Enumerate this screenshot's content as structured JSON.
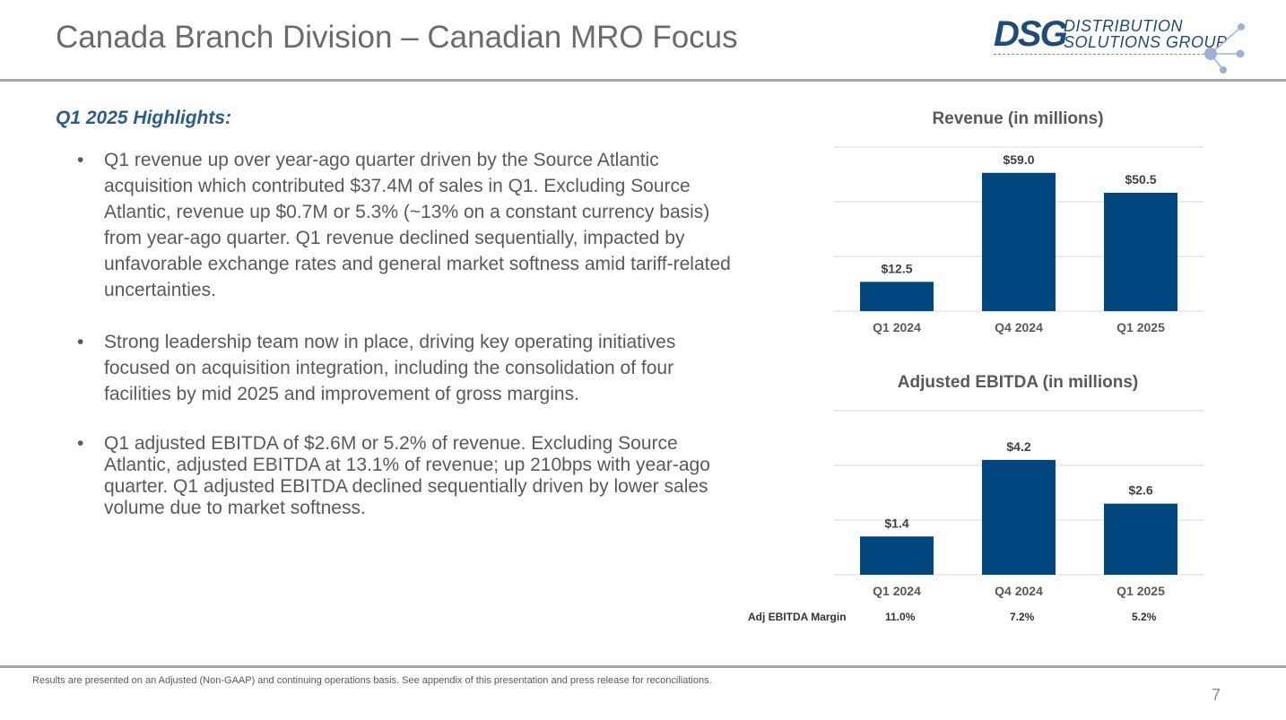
{
  "slide": {
    "title": "Canada Branch Division – Canadian MRO Focus",
    "page_number": "7",
    "footnote": "Results are presented on an Adjusted (Non-GAAP) and continuing operations basis. See appendix of this presentation and press release for reconciliations."
  },
  "logo": {
    "mark": "DSG",
    "line1": "DISTRIBUTION",
    "line2": "SOLUTIONS GROUP"
  },
  "highlights": {
    "heading": "Q1 2025 Highlights:",
    "bullets": [
      "Q1 revenue up over year-ago quarter driven by the Source Atlantic acquisition which contributed $37.4M of sales in Q1. Excluding Source Atlantic, revenue up $0.7M or 5.3% (~13% on a constant currency basis) from year-ago quarter. Q1 revenue declined sequentially, impacted by unfavorable exchange rates and general market softness amid tariff-related uncertainties.",
      "Strong leadership team now in place, driving key operating initiatives focused on acquisition integration, including the consolidation of four facilities by mid 2025 and improvement of gross margins.",
      "Q1 adjusted EBITDA of $2.6M or 5.2% of revenue. Excluding Source Atlantic, adjusted EBITDA at 13.1% of revenue; up 210bps with year-ago quarter. Q1 adjusted EBITDA declined sequentially driven by lower sales volume due to market softness."
    ]
  },
  "colors": {
    "bar": "#00467f",
    "gridline": "#d9d9d9",
    "title": "#6b6b6b",
    "accent_heading": "#2b5d8c"
  },
  "chart_data": [
    {
      "type": "bar",
      "title": "Revenue (in millions)",
      "categories": [
        "Q1 2024",
        "Q4 2024",
        "Q1 2025"
      ],
      "values": [
        12.5,
        59.0,
        50.5
      ],
      "data_labels": [
        "$12.5",
        "$59.0",
        "$50.5"
      ],
      "ylim": [
        0,
        70
      ],
      "gridlines": true,
      "legend": "none"
    },
    {
      "type": "bar",
      "title": "Adjusted EBITDA (in millions)",
      "categories": [
        "Q1 2024",
        "Q4 2024",
        "Q1 2025"
      ],
      "values": [
        1.4,
        4.2,
        2.6
      ],
      "data_labels": [
        "$1.4",
        "$4.2",
        "$2.6"
      ],
      "ylim": [
        0,
        6
      ],
      "gridlines": true,
      "legend": "none",
      "margin_row": {
        "label": "Adj EBITDA Margin",
        "values": [
          "11.0%",
          "7.2%",
          "5.2%"
        ]
      }
    }
  ]
}
